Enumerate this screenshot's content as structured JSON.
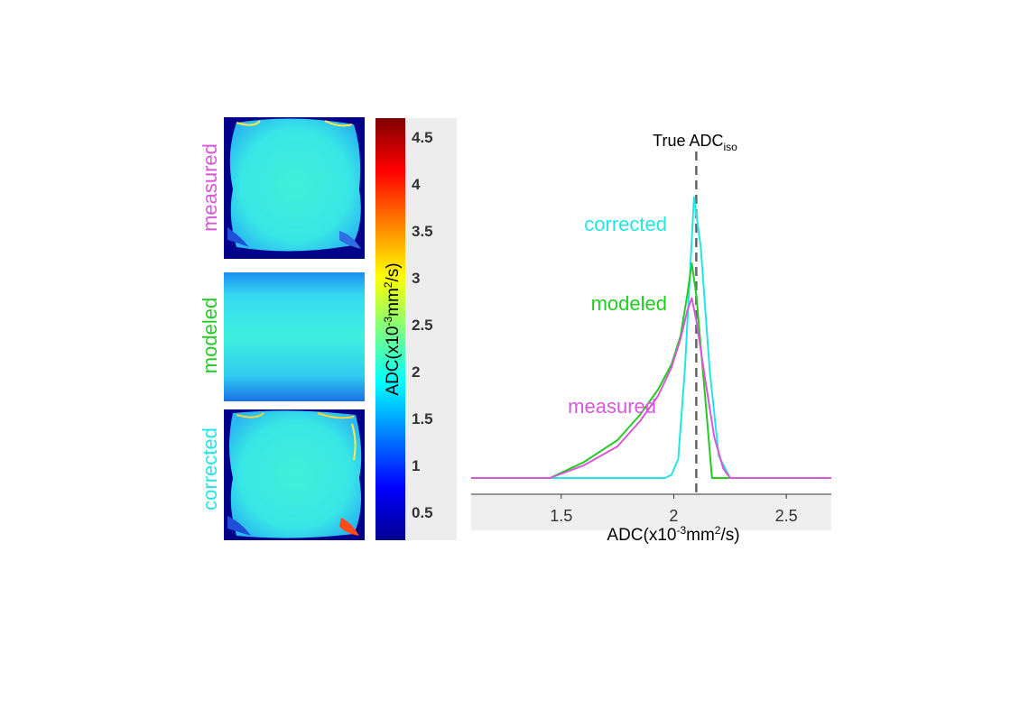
{
  "maps": {
    "labels": [
      "measured",
      "modeled",
      "corrected"
    ]
  },
  "colorbar": {
    "label_prefix": "ADC(x10",
    "label_exp1": "-3",
    "label_mid": "mm",
    "label_exp2": "2",
    "label_suffix": "/s)",
    "ticks": [
      "0.5",
      "1",
      "1.5",
      "2",
      "2.5",
      "3",
      "3.5",
      "4",
      "4.5"
    ],
    "range": [
      0.2,
      4.7
    ]
  },
  "colors": {
    "measured": "#d957d9",
    "modeled": "#22cc22",
    "corrected": "#22e6e6",
    "true_line": "#666666"
  },
  "chart_data": {
    "type": "line",
    "title": "",
    "xlabel": "ADC(x10-3mm2/s)",
    "xlabel_parts": {
      "prefix": "ADC(x10",
      "exp1": "-3",
      "mid": "mm",
      "exp2": "2",
      "suffix": "/s)"
    },
    "xlim": [
      1.1,
      2.7
    ],
    "ylim": [
      0,
      100
    ],
    "xticks": [
      1.5,
      2,
      2.5
    ],
    "xtick_labels": [
      "1.5",
      "2",
      "2.5"
    ],
    "true_adc": {
      "value": 2.1,
      "label": "True ADC",
      "subscript": "iso"
    },
    "series": [
      {
        "name": "corrected",
        "x": [
          1.1,
          1.96,
          1.99,
          2.02,
          2.05,
          2.09,
          2.12,
          2.16,
          2.2,
          2.25,
          2.7
        ],
        "y": [
          0,
          0,
          1,
          6,
          35,
          89,
          73,
          34,
          7,
          0,
          0
        ]
      },
      {
        "name": "modeled",
        "x": [
          1.1,
          1.45,
          1.6,
          1.75,
          1.85,
          1.93,
          1.99,
          2.03,
          2.06,
          2.08,
          2.1,
          2.14,
          2.17,
          2.2,
          2.7
        ],
        "y": [
          0,
          0,
          5,
          12,
          20,
          28,
          36,
          45,
          58,
          68,
          58,
          25,
          0,
          0,
          0
        ]
      },
      {
        "name": "measured",
        "x": [
          1.1,
          1.45,
          1.6,
          1.75,
          1.85,
          1.93,
          1.99,
          2.03,
          2.06,
          2.08,
          2.1,
          2.14,
          2.18,
          2.22,
          2.25,
          2.7
        ],
        "y": [
          0,
          0,
          4,
          10,
          18,
          26,
          35,
          44,
          53,
          57,
          50,
          31,
          13,
          3,
          0,
          0
        ]
      }
    ],
    "series_labels": [
      "corrected",
      "modeled",
      "measured"
    ]
  }
}
